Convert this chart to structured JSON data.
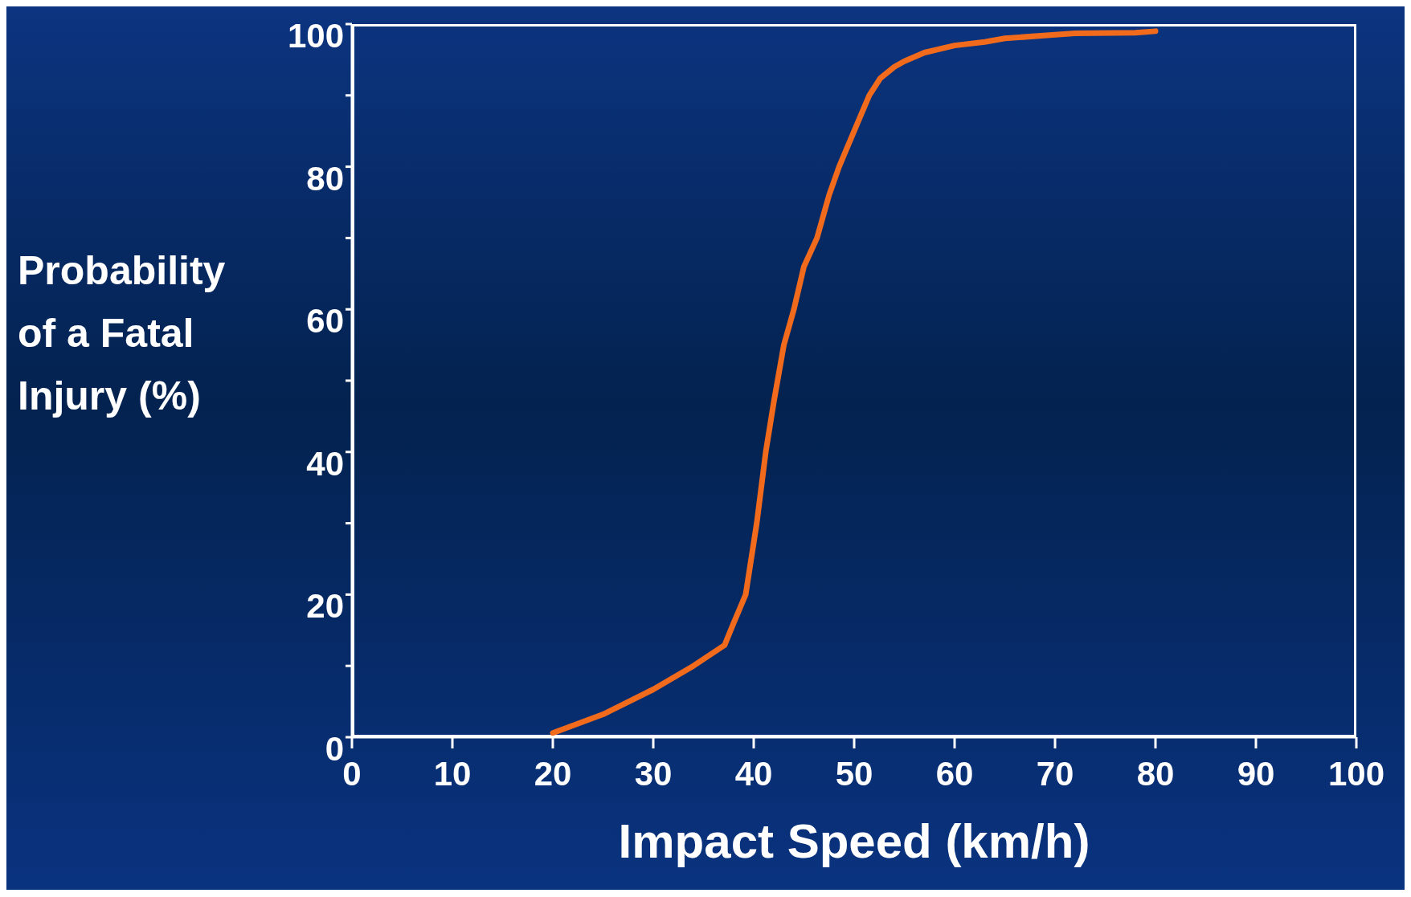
{
  "chart_data": {
    "type": "line",
    "xlabel": "Impact Speed (km/h)",
    "ylabel": "Probability of a Fatal Injury (%)",
    "x": [
      20,
      25,
      30,
      34,
      37.1,
      38,
      39.2,
      40.3,
      41.2,
      42,
      43,
      44,
      45,
      46.3,
      47.5,
      48.5,
      50,
      51.5,
      52.6,
      54,
      55,
      57,
      60,
      63,
      65,
      70,
      72,
      78,
      80
    ],
    "series": [
      {
        "color": "#f26b1d",
        "values": [
          0.6,
          3.2,
          6.7,
          10,
          12.9,
          16,
          20,
          30,
          40,
          47,
          55,
          60,
          66,
          70,
          76,
          80,
          85,
          90,
          92.4,
          94,
          94.8,
          96,
          97,
          97.5,
          98,
          98.5,
          98.7,
          98.8,
          99
        ]
      }
    ],
    "xlim": [
      0,
      100
    ],
    "xticks": [
      0,
      10,
      20,
      30,
      40,
      50,
      60,
      70,
      80,
      90,
      100
    ],
    "ylim": [
      0,
      100
    ],
    "yticks": [
      0,
      {
        "value": 10,
        "label": null
      },
      20,
      {
        "value": 30,
        "label": null
      },
      40,
      {
        "value": 50,
        "label": null
      },
      60,
      {
        "value": 70,
        "label": null
      },
      80,
      {
        "value": 90,
        "label": null
      },
      100
    ],
    "grid": false,
    "marker": "none",
    "line_style": "solid"
  }
}
